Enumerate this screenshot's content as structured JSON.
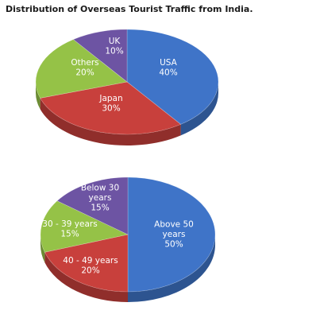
{
  "title": "Distribution of Overseas Tourist Traffic from India.",
  "colors": {
    "blue": "#3f74c8",
    "red": "#c8403c",
    "green": "#95c247",
    "purple": "#6d54a3"
  },
  "chart_data": [
    {
      "type": "pie",
      "title": "Distribution of Overseas Tourist Traffic from India.",
      "slices": [
        {
          "lines": [
            "USA",
            "40%"
          ],
          "value": 40,
          "color": "#3f74c8"
        },
        {
          "lines": [
            "Japan",
            "30%"
          ],
          "value": 30,
          "color": "#c8403c"
        },
        {
          "lines": [
            "Others",
            "20%"
          ],
          "value": 20,
          "color": "#95c247"
        },
        {
          "lines": [
            "UK",
            "10%"
          ],
          "value": 10,
          "color": "#6d54a3"
        }
      ]
    },
    {
      "type": "pie",
      "slices": [
        {
          "lines": [
            "Above 50",
            "years",
            "50%"
          ],
          "value": 50,
          "color": "#3f74c8"
        },
        {
          "lines": [
            "40 - 49 years",
            "20%"
          ],
          "value": 20,
          "color": "#c8403c"
        },
        {
          "lines": [
            "30 - 39 years",
            "15%"
          ],
          "value": 15,
          "color": "#95c247"
        },
        {
          "lines": [
            "Below 30",
            "years",
            "15%"
          ],
          "value": 15,
          "color": "#6d54a3"
        }
      ]
    }
  ]
}
